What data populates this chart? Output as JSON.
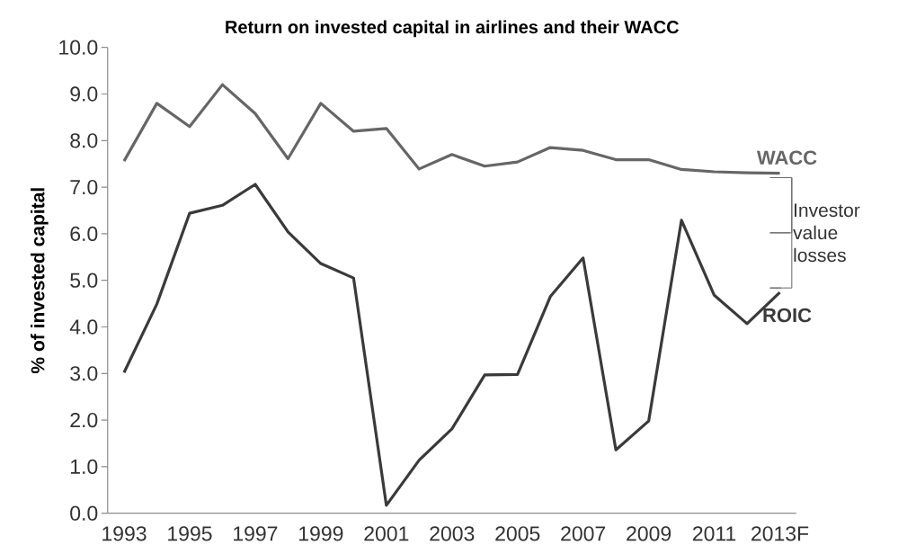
{
  "chart_data": {
    "type": "line",
    "title": "Return on invested capital in airlines and their WACC",
    "ylabel": "% of invested capital",
    "categories": [
      "1993",
      null,
      "1995",
      null,
      "1997",
      null,
      "1999",
      null,
      "2001",
      null,
      "2003",
      null,
      "2005",
      null,
      "2007",
      null,
      "2009",
      null,
      "2011",
      null,
      "2013F"
    ],
    "series": [
      {
        "name": "WACC",
        "color": "#666666",
        "values": [
          7.56,
          8.8,
          8.3,
          9.2,
          8.58,
          7.61,
          8.8,
          8.2,
          8.26,
          7.39,
          7.7,
          7.45,
          7.54,
          7.85,
          7.79,
          7.59,
          7.59,
          7.38,
          7.33,
          7.31,
          7.3
        ]
      },
      {
        "name": "ROIC",
        "color": "#3a3a3a",
        "values": [
          3.02,
          4.49,
          6.44,
          6.61,
          7.06,
          6.04,
          5.36,
          5.05,
          0.17,
          1.14,
          1.81,
          2.97,
          2.98,
          4.65,
          5.48,
          1.36,
          1.98,
          6.29,
          4.68,
          4.07,
          4.74
        ]
      }
    ],
    "ylim": [
      0,
      10
    ],
    "yticks": [
      {
        "value": 0,
        "label": "0.0"
      },
      {
        "value": 1,
        "label": "1.0"
      },
      {
        "value": 2,
        "label": "2.0"
      },
      {
        "value": 3,
        "label": "3.0"
      },
      {
        "value": 4,
        "label": "4.0"
      },
      {
        "value": 5,
        "label": "5.0"
      },
      {
        "value": 6,
        "label": "6.0"
      },
      {
        "value": 7,
        "label": "7.0"
      },
      {
        "value": 8,
        "label": "8.0"
      },
      {
        "value": 9,
        "label": "9.0"
      },
      {
        "value": 10,
        "label": "10.0"
      }
    ],
    "annotations": [
      "Investor value losses"
    ],
    "grid": false,
    "legend": false,
    "marker": "none",
    "line_style": "solid"
  }
}
